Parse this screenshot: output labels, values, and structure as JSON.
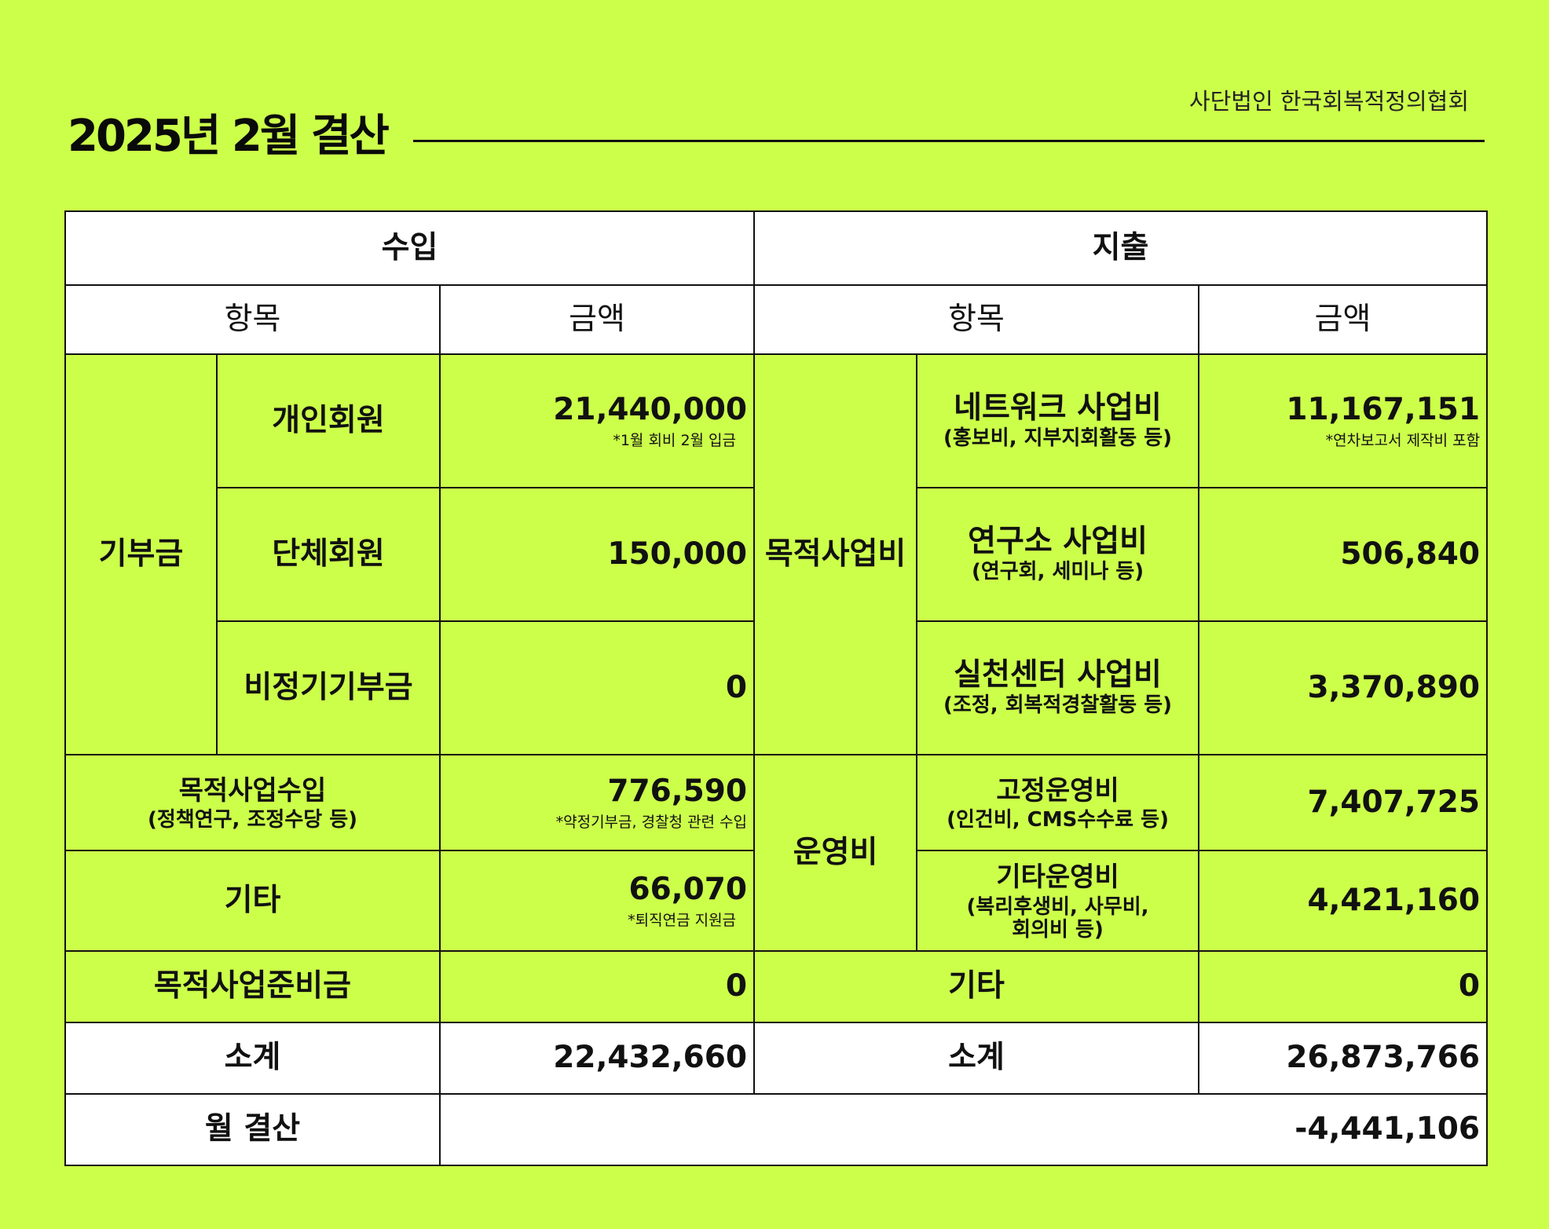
{
  "header": {
    "title": "2025년 2월 결산",
    "org": "사단법인 한국회복적정의협회"
  },
  "table": {
    "income_header": "수입",
    "expense_header": "지출",
    "item_header": "항목",
    "amount_header": "금액",
    "income": {
      "donation_group": "기부금",
      "personal_member": {
        "label": "개인회원",
        "amount": "21,440,000",
        "note": "*1월 회비 2월 입금"
      },
      "group_member": {
        "label": "단체회원",
        "amount": "150,000"
      },
      "irregular_donation": {
        "label": "비정기기부금",
        "amount": "0"
      },
      "purpose_business_income": {
        "label": "목적사업수입",
        "sub": "(정책연구, 조정수당 등)",
        "amount": "776,590",
        "note": "*약정기부금, 경찰청 관련 수입"
      },
      "other": {
        "label": "기타",
        "amount": "66,070",
        "note": "*퇴직연금 지원금"
      },
      "reserve": {
        "label": "목적사업준비금",
        "amount": "0"
      },
      "subtotal": {
        "label": "소계",
        "amount": "22,432,660"
      }
    },
    "expense": {
      "purpose_group": "목적사업비",
      "network": {
        "label": "네트워크 사업비",
        "sub": "(홍보비, 지부지회활동 등)",
        "amount": "11,167,151",
        "note": "*연차보고서 제작비 포함"
      },
      "institute": {
        "label": "연구소 사업비",
        "sub": "(연구회, 세미나 등)",
        "amount": "506,840"
      },
      "practice_center": {
        "label": "실천센터 사업비",
        "sub": "(조정, 회복적경찰활동 등)",
        "amount": "3,370,890"
      },
      "operating_group": "운영비",
      "fixed_operating": {
        "label": "고정운영비",
        "sub": "(인건비, CMS수수료 등)",
        "amount": "7,407,725"
      },
      "other_operating": {
        "label": "기타운영비",
        "sub1": "(복리후생비, 사무비,",
        "sub2": "회의비 등)",
        "amount": "4,421,160"
      },
      "other": {
        "label": "기타",
        "amount": "0"
      },
      "subtotal": {
        "label": "소계",
        "amount": "26,873,766"
      }
    },
    "monthly": {
      "label": "월 결산",
      "amount": "-4,441,106"
    }
  }
}
